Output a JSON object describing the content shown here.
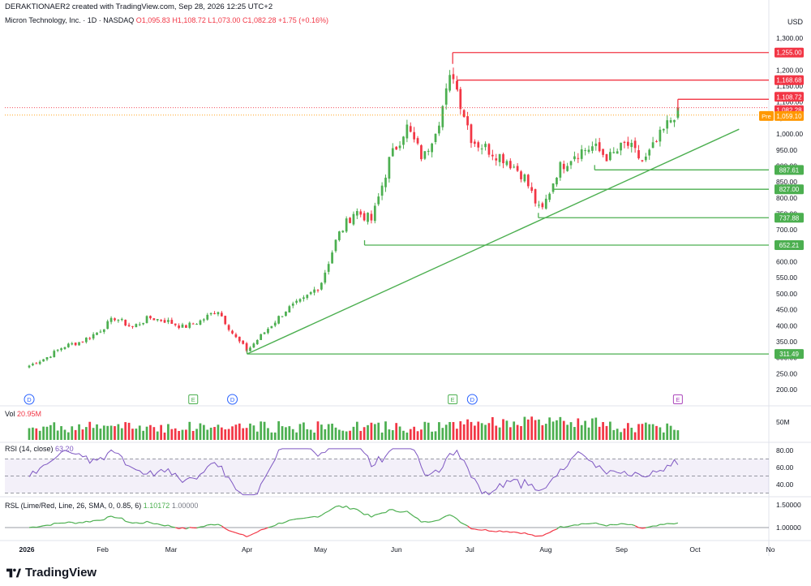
{
  "header": {
    "created": "DERAKTIONAER2 created with TradingView.com, Sep 28, 2026 12:25 UTC+2",
    "symbol": "Micron Technology, Inc. · 1D · NASDAQ",
    "open": "O1,095.83",
    "high": "H1,108.72",
    "low": "L1,073.00",
    "close": "C1,082.28",
    "change": "+1.75 (+0.16%)",
    "currency": "USD"
  },
  "panes": {
    "volume_label": "Vol",
    "volume_value": "20.95M",
    "rsi_label": "RSI (14, close)",
    "rsi_value": "63.20",
    "rsl_label": "RSL (Lime/Red, Line, 26, SMA, 0, 0.85, 6)",
    "rsl_value1": "1.10172",
    "rsl_value2": "1.00000"
  },
  "branding": {
    "logo_text": "TradingView"
  },
  "colors": {
    "up": "#089981",
    "green_candle": "#4caf50",
    "down": "#f23645",
    "line_green": "#4caf50",
    "level_red": "#f23645",
    "rsi": "#7e57c2"
  },
  "chart_data": {
    "type": "candlestick",
    "title": "Micron Technology, Inc. · 1D · NASDAQ",
    "currency": "USD",
    "x_ticks": [
      "2026",
      "Feb",
      "Mar",
      "Apr",
      "May",
      "Jun",
      "Jul",
      "Aug",
      "Sep",
      "Oct",
      "No"
    ],
    "y_ticks": [
      "1,300.00",
      "1,250.00",
      "1,200.00",
      "1,150.00",
      "1,100.00",
      "1,050.00",
      "1,000.00",
      "950.00",
      "900.00",
      "850.00",
      "800.00",
      "750.00",
      "700.00",
      "650.00",
      "600.00",
      "550.00",
      "500.00",
      "450.00",
      "400.00",
      "350.00",
      "300.00",
      "250.00",
      "200.00"
    ],
    "ylim": [
      180,
      1320
    ],
    "close_path": [
      [
        "2026-01-02",
        275
      ],
      [
        "2026-01-09",
        300
      ],
      [
        "2026-01-16",
        335
      ],
      [
        "2026-01-23",
        350
      ],
      [
        "2026-01-30",
        380
      ],
      [
        "2026-02-06",
        425
      ],
      [
        "2026-02-13",
        395
      ],
      [
        "2026-02-20",
        425
      ],
      [
        "2026-02-27",
        415
      ],
      [
        "2026-03-06",
        395
      ],
      [
        "2026-03-13",
        415
      ],
      [
        "2026-03-20",
        450
      ],
      [
        "2026-03-27",
        365
      ],
      [
        "2026-04-01",
        322
      ],
      [
        "2026-04-10",
        395
      ],
      [
        "2026-04-17",
        450
      ],
      [
        "2026-04-24",
        480
      ],
      [
        "2026-05-01",
        530
      ],
      [
        "2026-05-08",
        680
      ],
      [
        "2026-05-15",
        760
      ],
      [
        "2026-05-22",
        730
      ],
      [
        "2026-05-29",
        915
      ],
      [
        "2026-06-05",
        1025
      ],
      [
        "2026-06-12",
        920
      ],
      [
        "2026-06-19",
        1060
      ],
      [
        "2026-06-24",
        1200
      ],
      [
        "2026-06-26",
        1130
      ],
      [
        "2026-07-02",
        980
      ],
      [
        "2026-07-09",
        950
      ],
      [
        "2026-07-16",
        920
      ],
      [
        "2026-07-23",
        870
      ],
      [
        "2026-07-30",
        750
      ],
      [
        "2026-08-06",
        890
      ],
      [
        "2026-08-13",
        940
      ],
      [
        "2026-08-20",
        960
      ],
      [
        "2026-08-27",
        925
      ],
      [
        "2026-09-03",
        970
      ],
      [
        "2026-09-10",
        910
      ],
      [
        "2026-09-17",
        995
      ],
      [
        "2026-09-24",
        1082.28
      ]
    ],
    "candle_count": 183,
    "levels": [
      {
        "value": 1255.0,
        "label": "1,255.00",
        "color": "red",
        "from": "2026-06-24"
      },
      {
        "value": 1168.68,
        "label": "1,168.68",
        "color": "red",
        "from": "2026-06-26"
      },
      {
        "value": 1108.72,
        "label": "1,108.72",
        "color": "red",
        "from": "2026-09-24"
      },
      {
        "value": 1082.28,
        "label": "1,082.28",
        "color": "red",
        "kind": "last"
      },
      {
        "value": 1059.1,
        "label": "1,059.10",
        "color": "orange",
        "kind": "pre",
        "tag": "Pre"
      },
      {
        "value": 887.61,
        "label": "887.61",
        "color": "green",
        "from": "2026-08-21"
      },
      {
        "value": 827.0,
        "label": "827.00",
        "color": "green",
        "from": "2026-08-04"
      },
      {
        "value": 737.88,
        "label": "737.88",
        "color": "green",
        "from": "2026-07-29"
      },
      {
        "value": 652.21,
        "label": "652.21",
        "color": "green",
        "from": "2026-05-19"
      },
      {
        "value": 311.49,
        "label": "311.49",
        "color": "green",
        "from": "2026-04-01"
      }
    ],
    "trendline": {
      "from": [
        "2026-04-01",
        311.49
      ],
      "to": [
        "2026-10-19",
        1015
      ]
    },
    "event_markers": [
      {
        "date": "2026-01-02",
        "label": "D"
      },
      {
        "date": "2026-03-10",
        "label": "E"
      },
      {
        "date": "2026-03-26",
        "label": "D"
      },
      {
        "date": "2026-06-24",
        "label": "E"
      },
      {
        "date": "2026-07-02",
        "label": "D"
      },
      {
        "date": "2026-09-24",
        "label": "E"
      }
    ],
    "volume": {
      "label": "Vol",
      "last": "20.95M",
      "tick": "50M"
    },
    "rsi": {
      "label": "RSI (14, close)",
      "last": 63.2,
      "levels": [
        30,
        50,
        70
      ],
      "ticks": [
        "80.00",
        "60.00",
        "40.00"
      ]
    },
    "rsl": {
      "label": "RSL (Lime/Red, Line, 26, SMA, 0, 0.85, 6)",
      "last": 1.10172,
      "baseline": 1.0,
      "ticks": [
        "1.50000",
        "1.00000"
      ]
    }
  }
}
